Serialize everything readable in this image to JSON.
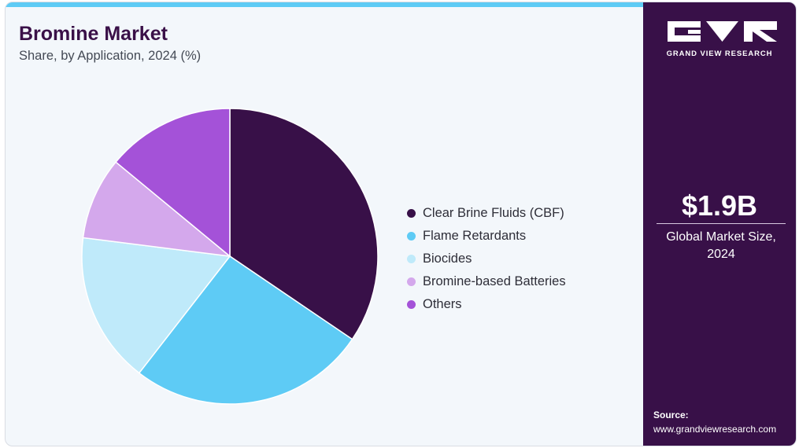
{
  "header": {
    "title": "Bromine Market",
    "subtitle": "Share, by Application, 2024 (%)"
  },
  "chart_data": {
    "type": "pie",
    "categories": [
      "Clear Brine Fluids (CBF)",
      "Flame Retardants",
      "Biocides",
      "Bromine-based Batteries",
      "Others"
    ],
    "values": [
      34.5,
      26.0,
      16.5,
      9.0,
      14.0
    ],
    "colors": [
      "#381048",
      "#5ecbf5",
      "#bfeafa",
      "#d4a8ec",
      "#a452d8"
    ],
    "legend_position": "right"
  },
  "sidebar": {
    "brand": "GRAND VIEW RESEARCH",
    "market_size": "$1.9B",
    "market_size_label": "Global Market Size, 2024",
    "source_title": "Source:",
    "source_url": "www.grandviewresearch.com"
  }
}
